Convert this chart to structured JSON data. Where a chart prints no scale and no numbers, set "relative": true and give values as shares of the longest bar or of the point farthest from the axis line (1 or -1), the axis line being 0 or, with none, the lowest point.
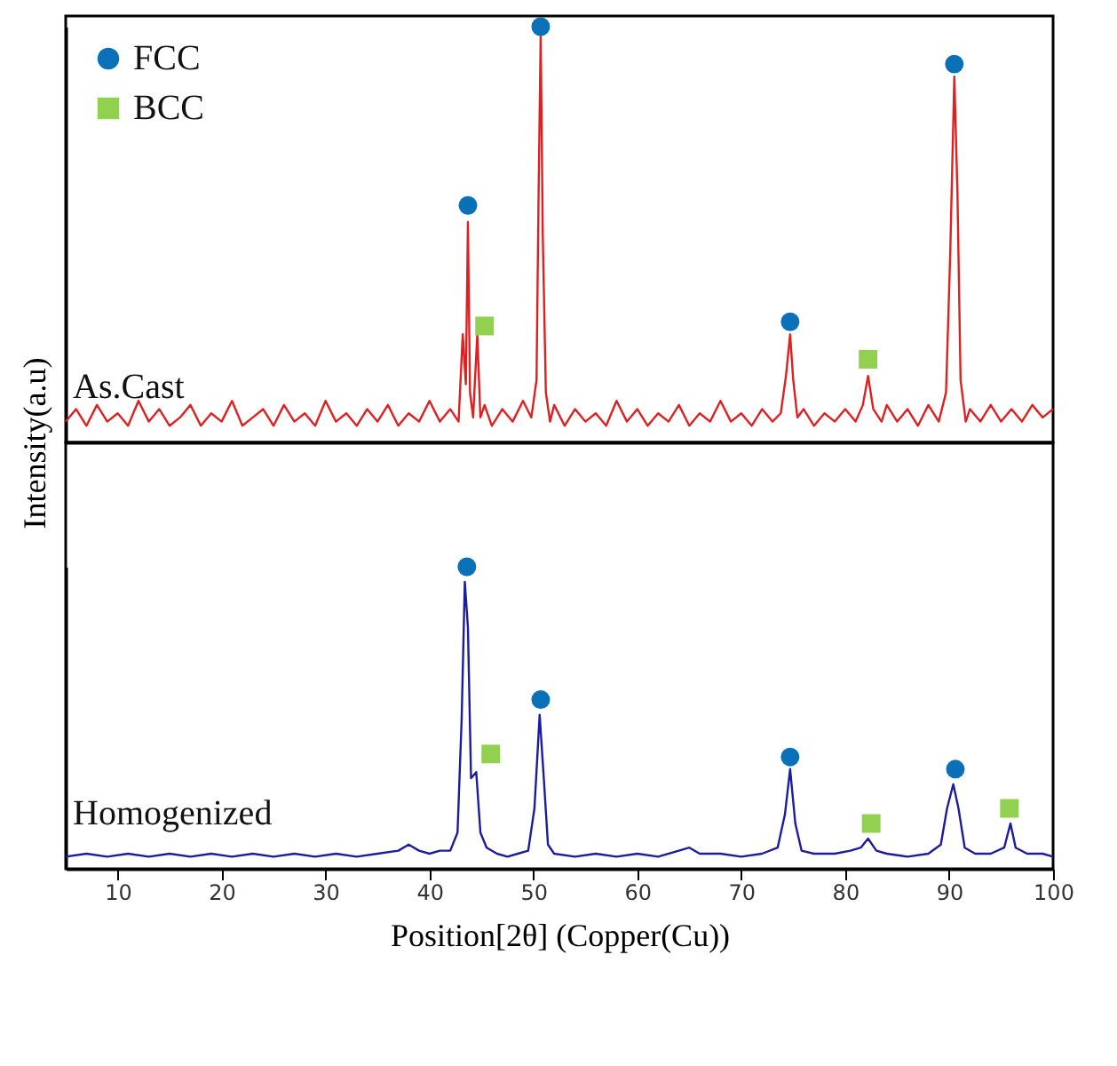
{
  "chart_data": [
    {
      "type": "line",
      "relative": true,
      "xlim": [
        5,
        100
      ],
      "tick_labels": false,
      "legend": "top left",
      "ylabel": "Intensity(a.u)",
      "annotations": [
        "As.Cast"
      ],
      "grid": false,
      "series": [
        {
          "type": "line",
          "color": "#e02020",
          "x": [
            5,
            6,
            7,
            8,
            9,
            10,
            11,
            12,
            13,
            14,
            15,
            16,
            17,
            18,
            19,
            20,
            21,
            22,
            23,
            24,
            25,
            26,
            27,
            28,
            29,
            30,
            31,
            32,
            33,
            34,
            35,
            36,
            37,
            38,
            39,
            40,
            41,
            42,
            42.8,
            43.2,
            43.5,
            43.7,
            43.9,
            44.2,
            44.6,
            44.9,
            45.3,
            46,
            47,
            48,
            49,
            49.8,
            50.3,
            50.5,
            50.7,
            50.9,
            51.2,
            51.6,
            52,
            53,
            54,
            55,
            56,
            57,
            58,
            59,
            60,
            61,
            62,
            63,
            64,
            65,
            66,
            67,
            68,
            69,
            70,
            71,
            72,
            73,
            73.8,
            74.3,
            74.7,
            75.0,
            75.4,
            76,
            77,
            78,
            79,
            80,
            81,
            81.7,
            82.2,
            82.7,
            83.5,
            84,
            85,
            86,
            87,
            88,
            89,
            89.7,
            90.1,
            90.5,
            90.8,
            91.1,
            91.6,
            92,
            93,
            94,
            95,
            96,
            97,
            98,
            99,
            100
          ],
          "values": [
            0.05,
            0.08,
            0.04,
            0.09,
            0.05,
            0.07,
            0.04,
            0.1,
            0.05,
            0.08,
            0.04,
            0.06,
            0.09,
            0.04,
            0.07,
            0.05,
            0.1,
            0.04,
            0.06,
            0.08,
            0.04,
            0.09,
            0.05,
            0.07,
            0.04,
            0.1,
            0.05,
            0.07,
            0.04,
            0.08,
            0.05,
            0.09,
            0.04,
            0.07,
            0.05,
            0.1,
            0.05,
            0.08,
            0.05,
            0.26,
            0.14,
            0.53,
            0.12,
            0.06,
            0.26,
            0.06,
            0.09,
            0.04,
            0.08,
            0.05,
            0.1,
            0.06,
            0.15,
            0.6,
            0.98,
            0.5,
            0.12,
            0.05,
            0.09,
            0.04,
            0.08,
            0.05,
            0.07,
            0.04,
            0.1,
            0.05,
            0.08,
            0.04,
            0.07,
            0.05,
            0.09,
            0.04,
            0.07,
            0.05,
            0.1,
            0.05,
            0.07,
            0.04,
            0.08,
            0.05,
            0.07,
            0.16,
            0.26,
            0.15,
            0.06,
            0.08,
            0.04,
            0.07,
            0.05,
            0.08,
            0.05,
            0.09,
            0.16,
            0.08,
            0.05,
            0.09,
            0.05,
            0.08,
            0.04,
            0.09,
            0.05,
            0.12,
            0.45,
            0.88,
            0.6,
            0.15,
            0.05,
            0.08,
            0.05,
            0.09,
            0.05,
            0.08,
            0.05,
            0.09,
            0.06,
            0.08
          ]
        },
        {
          "type": "scatter",
          "name": "FCC",
          "marker": "circle",
          "color": "#0a70b8",
          "x": [
            43.7,
            50.7,
            74.7,
            90.5
          ],
          "values": [
            0.57,
            1,
            0.29,
            0.91
          ]
        },
        {
          "type": "scatter",
          "name": "BCC",
          "marker": "square",
          "color": "#92d050",
          "x": [
            45.3,
            82.2
          ],
          "values": [
            0.28,
            0.2
          ]
        }
      ]
    },
    {
      "type": "line",
      "relative": true,
      "xlim": [
        5,
        100
      ],
      "xticks": [
        10,
        20,
        30,
        40,
        50,
        60,
        70,
        80,
        90,
        100
      ],
      "tick_labels": "x",
      "xlabel": "Position[2θ] (Copper(Cu))",
      "annotations": [
        "Homogenized"
      ],
      "grid": false,
      "series": [
        {
          "type": "line",
          "color": "#1c1ca0",
          "x": [
            5,
            7,
            9,
            11,
            13,
            15,
            17,
            19,
            21,
            23,
            25,
            27,
            29,
            31,
            33,
            35,
            37,
            38,
            39,
            40,
            41,
            42,
            42.7,
            43.1,
            43.4,
            43.7,
            44.0,
            44.5,
            44.9,
            45.5,
            46.5,
            47.5,
            48.5,
            49.5,
            50.1,
            50.6,
            51.0,
            51.4,
            52,
            54,
            56,
            58,
            60,
            62,
            64,
            65,
            66,
            68,
            70,
            72,
            73.5,
            74.2,
            74.7,
            75.2,
            75.8,
            77,
            79,
            80.5,
            81.5,
            82.2,
            83,
            84,
            86,
            88,
            89.2,
            89.8,
            90.4,
            90.9,
            91.5,
            92.5,
            94,
            95.3,
            95.9,
            96.4,
            97.5,
            99,
            100
          ],
          "values": [
            0.04,
            0.05,
            0.04,
            0.05,
            0.04,
            0.05,
            0.04,
            0.05,
            0.04,
            0.05,
            0.04,
            0.05,
            0.04,
            0.05,
            0.04,
            0.05,
            0.06,
            0.08,
            0.06,
            0.05,
            0.06,
            0.06,
            0.12,
            0.5,
            0.95,
            0.8,
            0.3,
            0.32,
            0.12,
            0.07,
            0.05,
            0.04,
            0.05,
            0.06,
            0.2,
            0.51,
            0.3,
            0.08,
            0.05,
            0.04,
            0.05,
            0.04,
            0.05,
            0.04,
            0.06,
            0.07,
            0.05,
            0.05,
            0.04,
            0.05,
            0.07,
            0.18,
            0.33,
            0.15,
            0.06,
            0.05,
            0.05,
            0.06,
            0.07,
            0.1,
            0.06,
            0.05,
            0.04,
            0.05,
            0.08,
            0.2,
            0.28,
            0.2,
            0.07,
            0.05,
            0.05,
            0.07,
            0.15,
            0.07,
            0.05,
            0.05,
            0.04
          ]
        },
        {
          "type": "scatter",
          "marker": "circle",
          "color": "#0a70b8",
          "x": [
            43.6,
            50.7,
            74.7,
            90.6
          ],
          "values": [
            1,
            0.56,
            0.37,
            0.33
          ]
        },
        {
          "type": "scatter",
          "marker": "square",
          "color": "#92d050",
          "x": [
            45.9,
            82.5,
            95.8
          ],
          "values": [
            0.38,
            0.15,
            0.2
          ]
        }
      ]
    }
  ]
}
